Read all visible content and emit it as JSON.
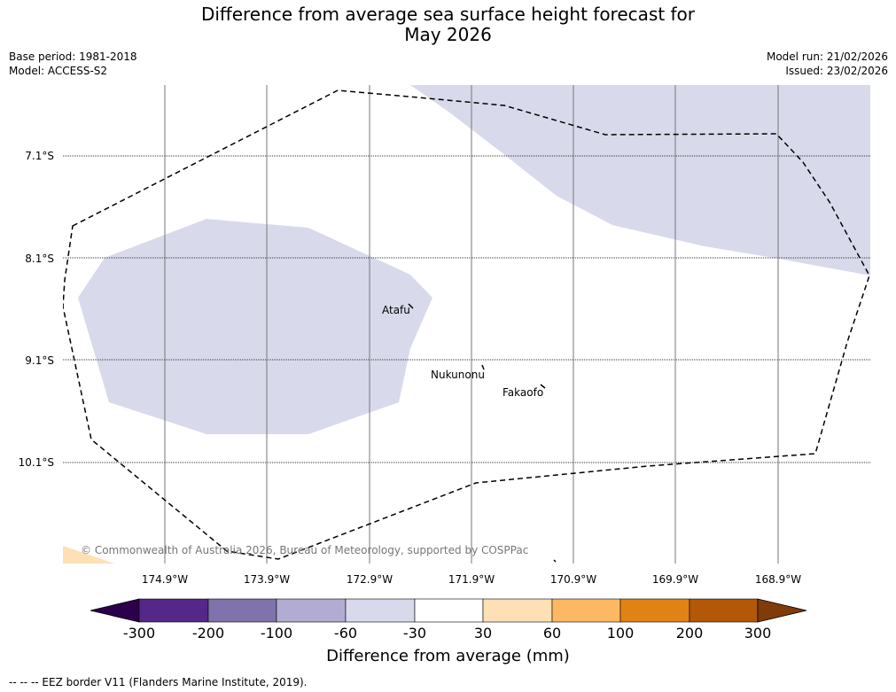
{
  "title": {
    "line1": "Difference from average sea surface height forecast for",
    "line2": "May 2026"
  },
  "base_period": "Base period: 1981-2018",
  "model": "Model: ACCESS-S2",
  "model_run": "Model run: 21/02/2026",
  "issued": "Issued: 23/02/2026",
  "latitude_labels": [
    "7.1°S",
    "8.1°S",
    "9.1°S",
    "10.1°S"
  ],
  "longitude_labels": [
    "174.9°W",
    "173.9°W",
    "172.9°W",
    "171.9°W",
    "170.9°W",
    "169.9°W",
    "168.9°W"
  ],
  "places": [
    "Atafu",
    "Nukunonu",
    "Fakaofo"
  ],
  "copyright": "© Commonwealth of Australia 2026, Bureau of Meteorology, supported by COSPPac",
  "colorbar": {
    "title": "Difference from average (mm)",
    "tick_labels": [
      "-300",
      "-200",
      "-100",
      "-60",
      "-30",
      "30",
      "60",
      "100",
      "200",
      "300"
    ],
    "colors": [
      "#2d004b",
      "#542788",
      "#8073ac",
      "#b2abd2",
      "#d8daeb",
      "#ffffff",
      "#fee0b6",
      "#fdb863",
      "#e08214",
      "#b35806",
      "#7f3b08"
    ]
  },
  "colors": {
    "anomaly_fill": "#d8daeb",
    "warm_fill": "#fee0b6",
    "gridline": "#777777"
  },
  "legend_note": "--  --  -- EEZ border V11 (Flanders Marine Institute, 2019)."
}
